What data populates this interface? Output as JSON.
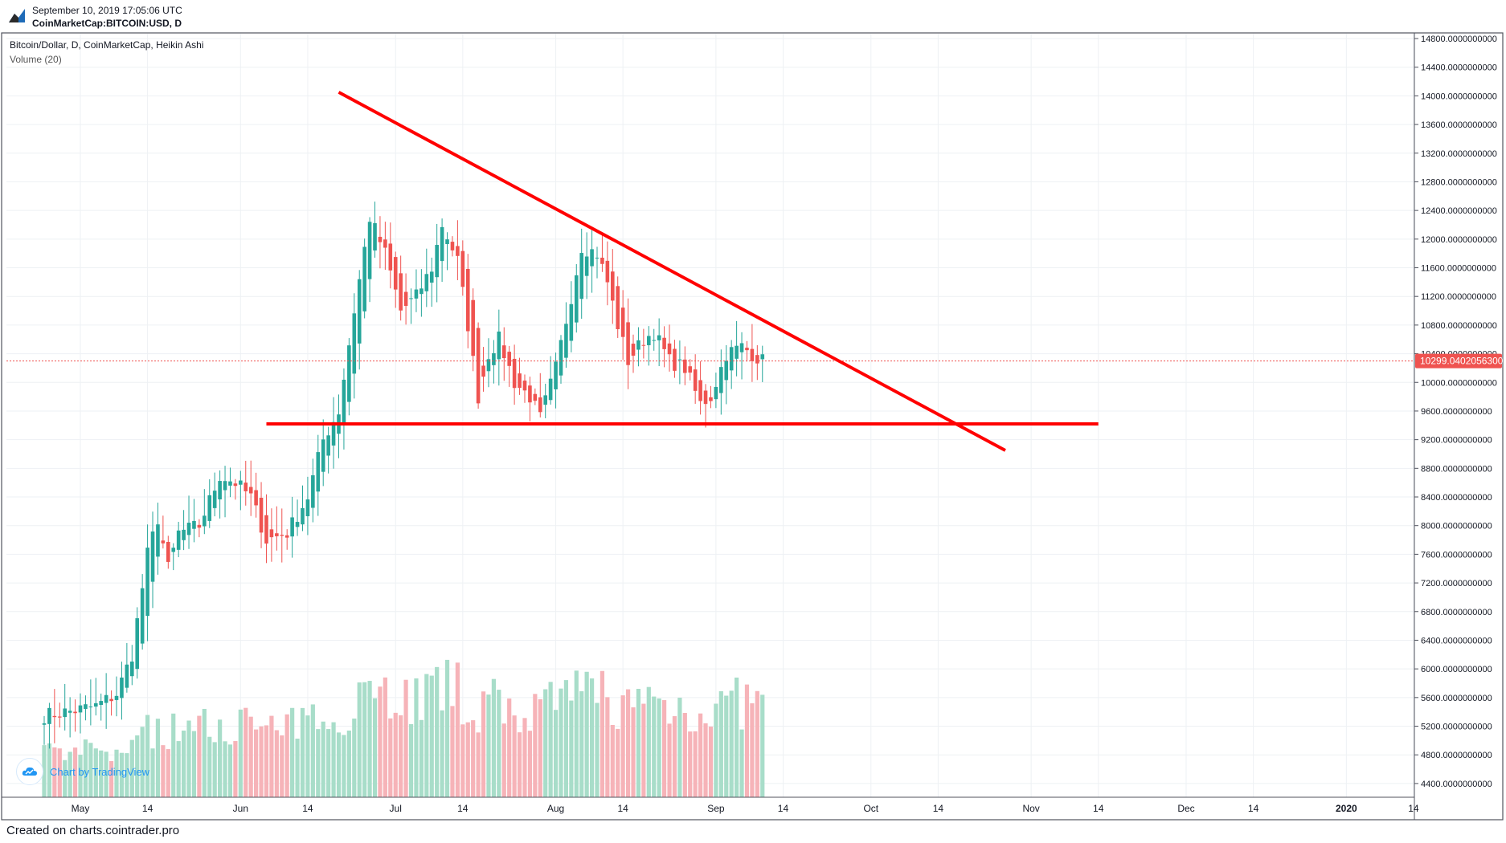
{
  "header": {
    "date": "September 10, 2019 17:05:06 UTC",
    "symbol": "CoinMarketCap:BITCOIN:USD, D"
  },
  "legend": {
    "main": "Bitcoin/Dollar, D, CoinMarketCap, Heikin Ashi",
    "volume": "Volume (20)"
  },
  "watermark": "Chart by TradingView",
  "footer": "Created on charts.cointrader.pro",
  "colors": {
    "up": "#26a69a",
    "down": "#ef5350",
    "trendline": "#ff0000",
    "price_tag": "#ef5350",
    "grid": "#eef1f4",
    "axis_border": "#50535e"
  },
  "chart_data": {
    "type": "candlestick",
    "x_tick_labels": [
      "May",
      "14",
      "Jun",
      "14",
      "Jul",
      "14",
      "Aug",
      "14",
      "Sep",
      "14",
      "Oct",
      "14",
      "Nov",
      "14",
      "Dec",
      "14",
      "2020",
      "14"
    ],
    "y_tick_labels": [
      "4400.0000000000",
      "4800.0000000000",
      "5200.0000000000",
      "5600.0000000000",
      "6000.0000000000",
      "6400.0000000000",
      "6800.0000000000",
      "7200.0000000000",
      "7600.0000000000",
      "8000.0000000000",
      "8400.0000000000",
      "8800.0000000000",
      "9200.0000000000",
      "9600.0000000000",
      "10000.0000000000",
      "10400.0000000000",
      "10800.0000000000",
      "11200.0000000000",
      "11600.0000000000",
      "12000.0000000000",
      "12400.0000000000",
      "12800.0000000000",
      "13200.0000000000",
      "13600.0000000000",
      "14000.0000000000",
      "14400.0000000000",
      "14800.0000000000"
    ],
    "ylim": [
      4200,
      14900
    ],
    "last_price_label": "10299.0402056300",
    "last_price": 10299.04,
    "close_path": [
      [
        "2019-04-24",
        5350
      ],
      [
        "2019-04-30",
        5420
      ],
      [
        "2019-05-04",
        5480
      ],
      [
        "2019-05-08",
        5650
      ],
      [
        "2019-05-11",
        6200
      ],
      [
        "2019-05-14",
        7600
      ],
      [
        "2019-05-16",
        8100
      ],
      [
        "2019-05-18",
        7400
      ],
      [
        "2019-05-20",
        7900
      ],
      [
        "2019-05-24",
        8000
      ],
      [
        "2019-05-28",
        8700
      ],
      [
        "2019-05-31",
        8600
      ],
      [
        "2019-06-03",
        8400
      ],
      [
        "2019-06-06",
        7800
      ],
      [
        "2019-06-10",
        7900
      ],
      [
        "2019-06-14",
        8400
      ],
      [
        "2019-06-17",
        9200
      ],
      [
        "2019-06-20",
        9600
      ],
      [
        "2019-06-23",
        11000
      ],
      [
        "2019-06-26",
        12300
      ],
      [
        "2019-06-29",
        11800
      ],
      [
        "2019-07-02",
        11000
      ],
      [
        "2019-07-05",
        11200
      ],
      [
        "2019-07-08",
        11600
      ],
      [
        "2019-07-10",
        12200
      ],
      [
        "2019-07-13",
        11700
      ],
      [
        "2019-07-15",
        10800
      ],
      [
        "2019-07-17",
        9800
      ],
      [
        "2019-07-19",
        10400
      ],
      [
        "2019-07-21",
        10600
      ],
      [
        "2019-07-24",
        10000
      ],
      [
        "2019-07-27",
        9800
      ],
      [
        "2019-07-29",
        9500
      ],
      [
        "2019-08-01",
        10200
      ],
      [
        "2019-08-04",
        11200
      ],
      [
        "2019-08-06",
        11900
      ],
      [
        "2019-08-09",
        11800
      ],
      [
        "2019-08-11",
        11400
      ],
      [
        "2019-08-13",
        10800
      ],
      [
        "2019-08-15",
        10300
      ],
      [
        "2019-08-18",
        10600
      ],
      [
        "2019-08-20",
        10700
      ],
      [
        "2019-08-23",
        10300
      ],
      [
        "2019-08-26",
        10200
      ],
      [
        "2019-08-29",
        9700
      ],
      [
        "2019-08-31",
        9800
      ],
      [
        "2019-09-03",
        10400
      ],
      [
        "2019-09-06",
        10500
      ],
      [
        "2019-09-10",
        10300
      ]
    ],
    "volume_range": [
      0,
      4500000000
    ],
    "trendlines": [
      {
        "name": "descending-resistance",
        "points": [
          [
            "2019-06-20",
            14050
          ],
          [
            "2019-10-27",
            9050
          ]
        ]
      },
      {
        "name": "horizontal-support",
        "points": [
          [
            "2019-06-06",
            9420
          ],
          [
            "2019-11-14",
            9420
          ]
        ]
      }
    ],
    "grid": true
  }
}
